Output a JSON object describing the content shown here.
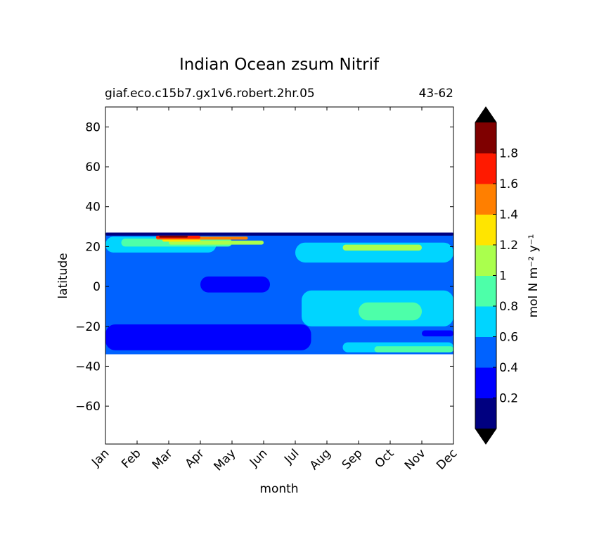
{
  "chart_data": {
    "type": "heatmap",
    "title": "Indian Ocean zsum Nitrif",
    "subtitle_left": "giaf.eco.c15b7.gx1v6.robert.2hr.05",
    "subtitle_right": "43-62",
    "xlabel": "month",
    "ylabel": "latitude",
    "x_ticks": [
      "Jan",
      "Feb",
      "Mar",
      "Apr",
      "May",
      "Jun",
      "Jul",
      "Aug",
      "Sep",
      "Oct",
      "Nov",
      "Dec"
    ],
    "y_ticks": [
      80,
      60,
      40,
      20,
      0,
      -20,
      -40,
      -60
    ],
    "ylim": [
      -79,
      90
    ],
    "data_lat_range": [
      -34,
      27
    ],
    "colorbar": {
      "label": "mol N m⁻² y⁻¹",
      "tick_labels": [
        "0.2",
        "0.4",
        "0.6",
        "0.8",
        "1",
        "1.2",
        "1.4",
        "1.6",
        "1.8"
      ],
      "levels": [
        0,
        0.2,
        0.4,
        0.6,
        0.8,
        1.0,
        1.2,
        1.4,
        1.6,
        1.8,
        2.0
      ],
      "colors": [
        "#000080",
        "#0000ff",
        "#0062ff",
        "#00d5ff",
        "#4dffa9",
        "#aaff4d",
        "#ffe500",
        "#ff7f00",
        "#ff1a00",
        "#7f0000"
      ],
      "extend": "both",
      "under_color": "#000000",
      "over_color": "#000000"
    },
    "regions": [
      {
        "level": 0.5,
        "description": "background"
      },
      {
        "level": 0.1,
        "lat": [
          25.5,
          27
        ],
        "months": [
          0,
          11
        ]
      },
      {
        "level": 0.3,
        "lat": [
          -32,
          -19
        ],
        "months": [
          0,
          6.5
        ]
      },
      {
        "level": 0.3,
        "lat": [
          -25,
          -22
        ],
        "months": [
          10,
          11
        ]
      },
      {
        "level": 0.3,
        "lat": [
          -3,
          5
        ],
        "months": [
          3,
          5.2
        ]
      },
      {
        "level": 0.7,
        "lat": [
          17,
          25
        ],
        "months": [
          0,
          3.5
        ]
      },
      {
        "level": 0.7,
        "lat": [
          12,
          22
        ],
        "months": [
          6,
          11
        ]
      },
      {
        "level": 0.7,
        "lat": [
          -20,
          -2
        ],
        "months": [
          6.2,
          11
        ]
      },
      {
        "level": 0.7,
        "lat": [
          -33,
          -28
        ],
        "months": [
          7.5,
          11
        ]
      },
      {
        "level": 0.9,
        "lat": [
          20,
          24
        ],
        "months": [
          0.5,
          4
        ]
      },
      {
        "level": 0.9,
        "lat": [
          -17,
          -8
        ],
        "months": [
          8,
          10
        ]
      },
      {
        "level": 0.9,
        "lat": [
          -33,
          -30
        ],
        "months": [
          8.5,
          11
        ]
      },
      {
        "level": 1.1,
        "lat": [
          21,
          23
        ],
        "months": [
          2,
          5
        ]
      },
      {
        "level": 1.1,
        "lat": [
          18,
          21
        ],
        "months": [
          7.5,
          10
        ]
      },
      {
        "level": 1.3,
        "lat": [
          22.5,
          24
        ],
        "months": [
          1.8,
          3
        ]
      },
      {
        "level": 1.5,
        "lat": [
          23.5,
          25
        ],
        "months": [
          1.6,
          4.5
        ]
      },
      {
        "level": 1.7,
        "lat": [
          24,
          25.5
        ],
        "months": [
          1.6,
          3
        ]
      },
      {
        "level": 1.9,
        "lat": [
          24.5,
          25.5
        ],
        "months": [
          1.7,
          2.6
        ]
      }
    ]
  }
}
